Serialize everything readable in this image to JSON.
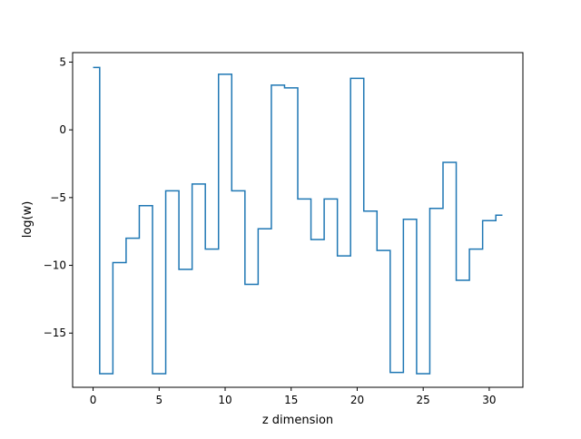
{
  "chart_data": {
    "type": "line",
    "drawstyle": "steps-mid",
    "xlabel": "z dimension",
    "ylabel": "log(w)",
    "xlim": [
      -1.55,
      32.55
    ],
    "ylim": [
      -19,
      5.7
    ],
    "xticks": [
      0,
      5,
      10,
      15,
      20,
      25,
      30
    ],
    "yticks": [
      5,
      0,
      -5,
      -10,
      -15
    ],
    "ytick_labels": [
      "5",
      "0",
      "−5",
      "−10",
      "−15"
    ],
    "xtick_labels": [
      "0",
      "5",
      "10",
      "15",
      "20",
      "25",
      "30"
    ],
    "grid": false,
    "series": [
      {
        "color": "#1f77b4",
        "x": [
          0,
          1,
          2,
          3,
          4,
          5,
          6,
          7,
          8,
          9,
          10,
          11,
          12,
          13,
          14,
          15,
          16,
          17,
          18,
          19,
          20,
          21,
          22,
          23,
          24,
          25,
          26,
          27,
          28,
          29,
          30,
          31
        ],
        "y": [
          4.6,
          -18.0,
          -9.8,
          -8.0,
          -5.6,
          -18.0,
          -4.5,
          -10.3,
          -4.0,
          -8.8,
          4.1,
          -4.5,
          -11.4,
          -7.3,
          3.3,
          3.1,
          -5.1,
          -8.1,
          -5.1,
          -9.3,
          3.8,
          -6.0,
          -8.9,
          -17.9,
          -6.6,
          -18.0,
          -5.8,
          -2.4,
          -11.1,
          -8.8,
          -6.7,
          -6.3
        ]
      }
    ]
  }
}
